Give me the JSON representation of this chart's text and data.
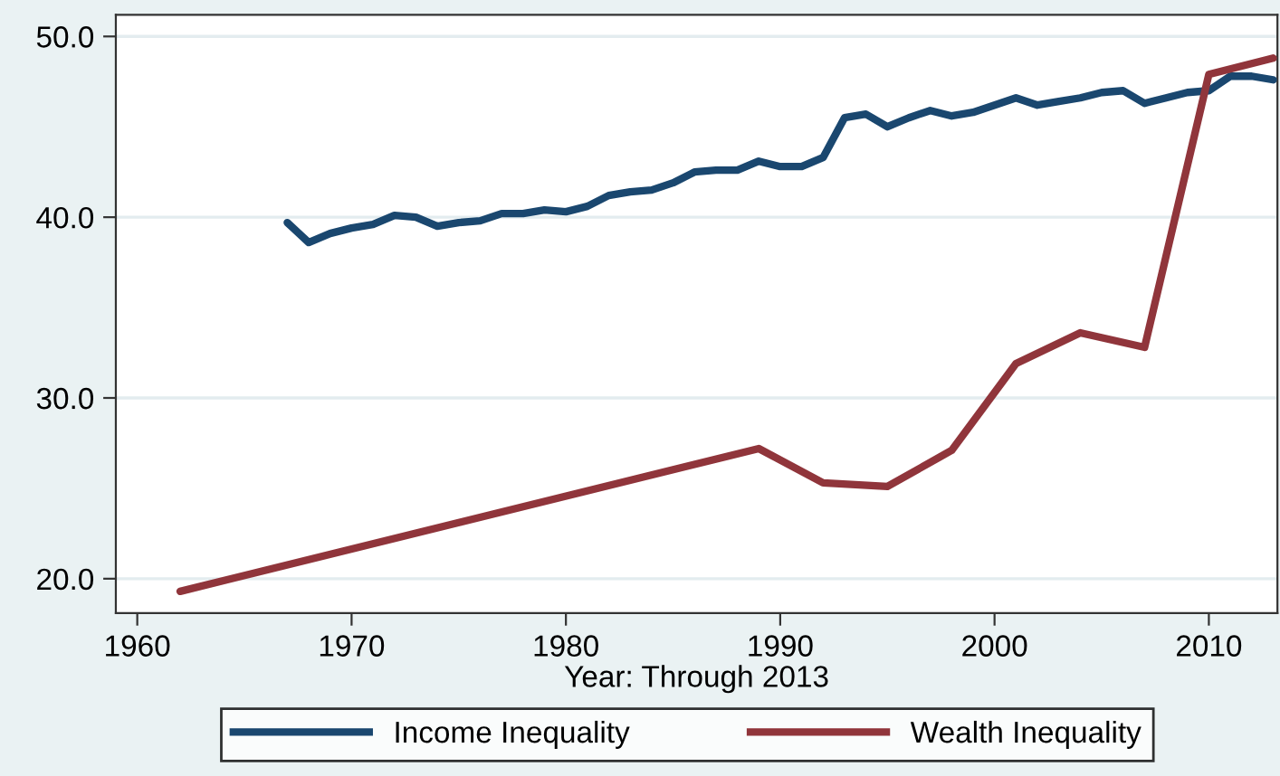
{
  "chart_data": {
    "type": "line",
    "xlabel": "Year: Through 2013",
    "xlim": [
      1959,
      2013.2
    ],
    "xticks": [
      1960,
      1970,
      1980,
      1990,
      2000,
      2010
    ],
    "ylim": [
      18.1,
      51.2
    ],
    "yticks": [
      {
        "value": 20,
        "label": "20.0"
      },
      {
        "value": 30,
        "label": "30.0"
      },
      {
        "value": 40,
        "label": "40.0"
      },
      {
        "value": 50,
        "label": "50.0"
      }
    ],
    "grid": "y",
    "legend": "bottom",
    "line_style": "solid",
    "marker": "none",
    "series": [
      {
        "name": "Income Inequality",
        "color": "#1a476f",
        "x": [
          1967,
          1968,
          1969,
          1970,
          1971,
          1972,
          1973,
          1974,
          1975,
          1976,
          1977,
          1978,
          1979,
          1980,
          1981,
          1982,
          1983,
          1984,
          1985,
          1986,
          1987,
          1988,
          1989,
          1990,
          1991,
          1992,
          1993,
          1994,
          1995,
          1996,
          1997,
          1998,
          1999,
          2000,
          2001,
          2002,
          2003,
          2004,
          2005,
          2006,
          2007,
          2008,
          2009,
          2010,
          2011,
          2012,
          2013
        ],
        "values": [
          39.7,
          38.6,
          39.1,
          39.4,
          39.6,
          40.1,
          40.0,
          39.5,
          39.7,
          39.8,
          40.2,
          40.2,
          40.4,
          40.3,
          40.6,
          41.2,
          41.4,
          41.5,
          41.9,
          42.5,
          42.6,
          42.6,
          43.1,
          42.8,
          42.8,
          43.3,
          45.5,
          45.7,
          45.0,
          45.5,
          45.9,
          45.6,
          45.8,
          46.2,
          46.6,
          46.2,
          46.4,
          46.6,
          46.9,
          47.0,
          46.3,
          46.6,
          46.9,
          47.0,
          47.8,
          47.8,
          47.6
        ]
      },
      {
        "name": "Wealth Inequality",
        "color": "#90353b",
        "x": [
          1962,
          1989,
          1992,
          1995,
          1998,
          2001,
          2004,
          2007,
          2010,
          2013
        ],
        "values": [
          19.3,
          27.2,
          25.3,
          25.1,
          27.1,
          31.9,
          33.6,
          32.8,
          47.9,
          48.8
        ]
      }
    ]
  }
}
